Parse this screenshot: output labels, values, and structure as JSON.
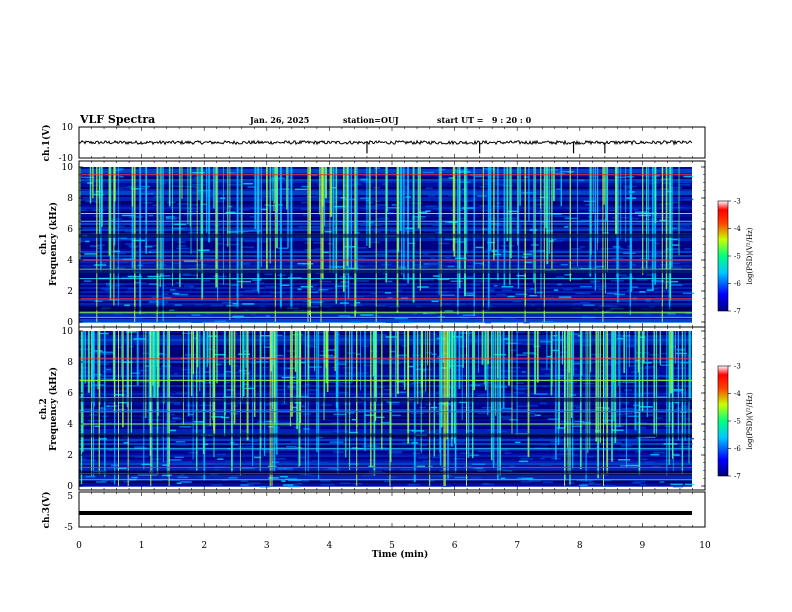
{
  "header": {
    "title": "VLF Spectra",
    "date": "Jan. 26, 2025",
    "station": "station=OUJ",
    "start_ut": "start UT =   9 : 20 : 0"
  },
  "colors": {
    "spectrogram_low": "#00007a",
    "spectrogram_mid": "#00c8ff",
    "spectrogram_high": "#ff0000",
    "waveform": "#000000"
  },
  "chart_data": [
    {
      "type": "line",
      "ylabel": "ch.1(V)",
      "ylim": [
        -10,
        10
      ],
      "yticks": [
        "10",
        "-10"
      ],
      "series": [
        {
          "values": "continuous waveform near 0 V with occasional spikes"
        }
      ],
      "spikes_min": [
        4.6,
        6.4,
        7.9,
        8.4
      ]
    },
    {
      "type": "heatmap",
      "ylabel_line1": "ch.1",
      "ylabel_line2": "Frequency (kHz)",
      "ylim": [
        0,
        10
      ],
      "yticks": [
        "0",
        "2",
        "4",
        "6",
        "8",
        "10"
      ],
      "colorbar": {
        "label": "log(PSD)(V²/Hz)",
        "range": [
          -7,
          -3
        ],
        "ticks": [
          "-3",
          "-4",
          "-5",
          "-6",
          "-7"
        ]
      },
      "notable_lines_khz": [
        9.5,
        7.0,
        6.5,
        4.0,
        3.4,
        2.8,
        1.5,
        0.6,
        0.3
      ]
    },
    {
      "type": "heatmap",
      "ylabel_line1": "ch.2",
      "ylabel_line2": "Frequency (kHz)",
      "ylim": [
        0,
        10
      ],
      "yticks": [
        "0",
        "2",
        "4",
        "6",
        "8",
        "10"
      ],
      "colorbar": {
        "label": "log(PSD)(V²/Hz)",
        "range": [
          -7,
          -3
        ],
        "ticks": [
          "-3",
          "-4",
          "-5",
          "-6",
          "-7"
        ]
      },
      "notable_lines_khz": [
        8.2,
        6.8,
        5.7,
        4.8,
        4.0,
        2.4,
        1.2,
        0.8,
        0.4
      ]
    },
    {
      "type": "line",
      "ylabel": "ch.3(V)",
      "ylim": [
        -5,
        5
      ],
      "yticks": [
        "5",
        "-5"
      ],
      "series": [
        {
          "values": "constant about -1 V"
        }
      ],
      "level_v": -1
    }
  ],
  "x_axis": {
    "label": "Time (min)",
    "range": [
      0,
      10
    ],
    "ticks": [
      "0",
      "1",
      "2",
      "3",
      "4",
      "5",
      "6",
      "7",
      "8",
      "9",
      "10"
    ]
  }
}
